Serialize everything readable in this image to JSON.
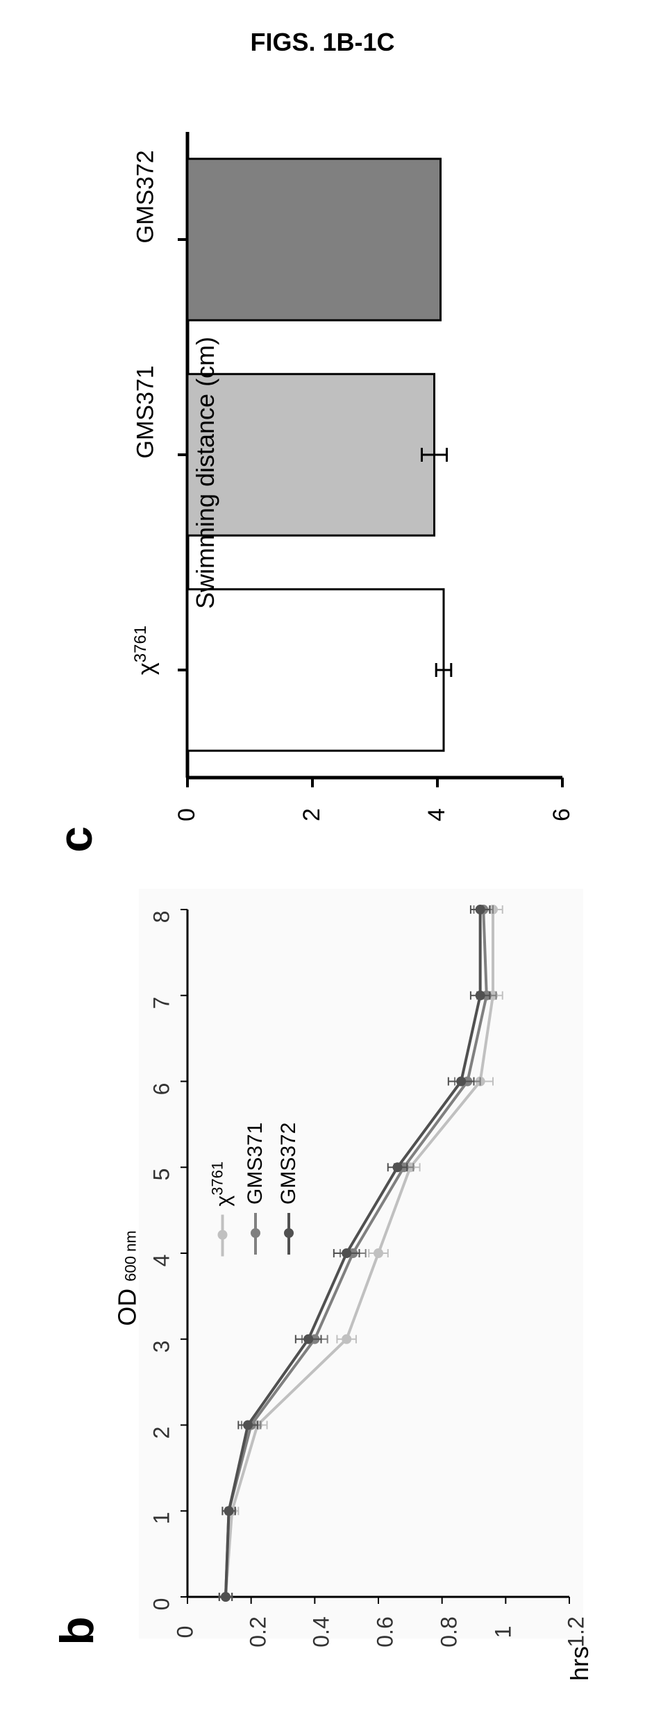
{
  "figure_title": "FIGS. 1B-1C",
  "panel_b": {
    "label": "b",
    "type": "line",
    "background_color": "#fafafa",
    "axis_color": "#000000",
    "grid": false,
    "xlabel": "hrs",
    "ylabel_main": "OD",
    "ylabel_sub": "600 nm",
    "label_fontsize": 36,
    "tick_fontsize": 32,
    "xlim": [
      0,
      8
    ],
    "ylim": [
      0,
      1.2
    ],
    "xticks": [
      0,
      1,
      2,
      3,
      4,
      5,
      6,
      7,
      8
    ],
    "yticks": [
      0,
      0.2,
      0.4,
      0.6,
      0.8,
      1,
      1.2
    ],
    "line_width": 4,
    "marker_size": 7,
    "series": [
      {
        "name": "χ3761",
        "name_prefix": "χ",
        "name_sup": "3761",
        "color": "#c0c0c0",
        "x": [
          0,
          1,
          2,
          3,
          4,
          5,
          6,
          7,
          8
        ],
        "y": [
          0.12,
          0.14,
          0.22,
          0.5,
          0.6,
          0.7,
          0.92,
          0.96,
          0.96
        ],
        "err": [
          0.02,
          0.02,
          0.03,
          0.03,
          0.03,
          0.03,
          0.04,
          0.03,
          0.03
        ]
      },
      {
        "name": "GMS371",
        "color": "#808080",
        "x": [
          0,
          1,
          2,
          3,
          4,
          5,
          6,
          7,
          8
        ],
        "y": [
          0.12,
          0.13,
          0.2,
          0.4,
          0.52,
          0.68,
          0.88,
          0.94,
          0.93
        ],
        "err": [
          0.02,
          0.02,
          0.03,
          0.04,
          0.04,
          0.03,
          0.04,
          0.03,
          0.03
        ]
      },
      {
        "name": "GMS372",
        "color": "#505050",
        "x": [
          0,
          1,
          2,
          3,
          4,
          5,
          6,
          7,
          8
        ],
        "y": [
          0.12,
          0.13,
          0.19,
          0.38,
          0.5,
          0.66,
          0.86,
          0.92,
          0.92
        ],
        "err": [
          0.02,
          0.02,
          0.03,
          0.04,
          0.04,
          0.03,
          0.04,
          0.03,
          0.03
        ]
      }
    ]
  },
  "panel_c": {
    "label": "c",
    "type": "bar",
    "background_color": "#ffffff",
    "axis_color": "#000000",
    "axis_width": 5,
    "ylabel": "Swimming distance (cm)",
    "label_fontsize": 36,
    "tick_fontsize": 34,
    "ylim": [
      0,
      6
    ],
    "yticks": [
      0,
      2,
      4,
      6
    ],
    "bar_width": 0.75,
    "bar_border_color": "#000000",
    "bar_border_width": 3,
    "categories": [
      {
        "label_prefix": "χ",
        "label_sup": "3761",
        "label": "χ3761",
        "value": 4.1,
        "err": 0.12,
        "fill": "#ffffff"
      },
      {
        "label": "GMS371",
        "value": 3.95,
        "err": 0.2,
        "fill": "#bfbfbf"
      },
      {
        "label": "GMS372",
        "value": 4.05,
        "err": 0.0,
        "fill": "#808080"
      }
    ]
  }
}
